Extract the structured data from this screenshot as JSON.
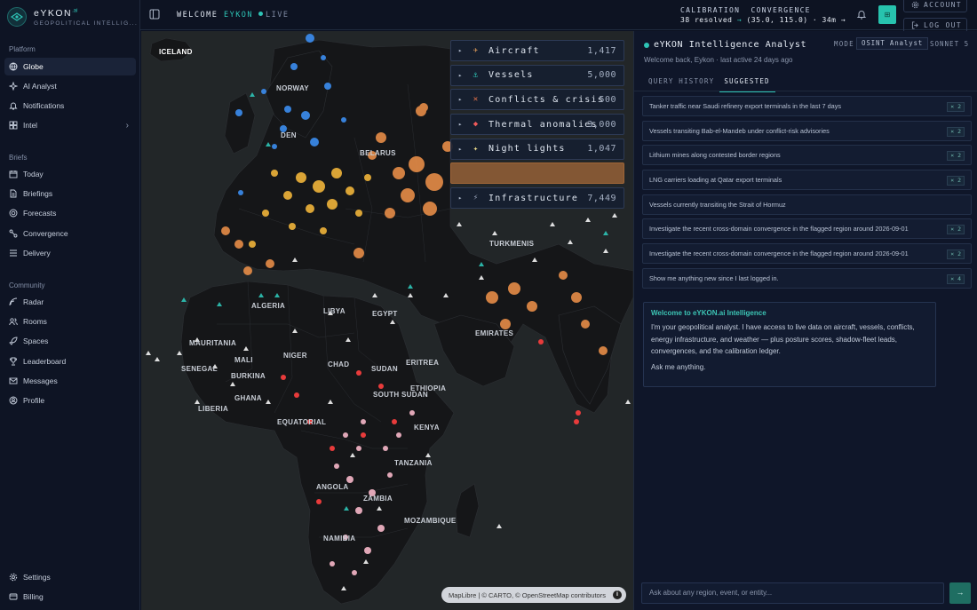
{
  "brand": {
    "name": "eYKON",
    "suffix": ".ai",
    "subtitle": "GEOPOLITICAL INTELLIG..."
  },
  "sidebar": {
    "platform_label": "Platform",
    "platform": [
      {
        "label": "Globe",
        "icon": "globe-icon",
        "active": true
      },
      {
        "label": "AI Analyst",
        "icon": "sparkle-icon"
      },
      {
        "label": "Notifications",
        "icon": "bell-icon"
      },
      {
        "label": "Intel",
        "icon": "grid-icon",
        "chevron": true
      }
    ],
    "briefs_label": "Briefs",
    "briefs": [
      {
        "label": "Today",
        "icon": "calendar-icon"
      },
      {
        "label": "Briefings",
        "icon": "document-icon"
      },
      {
        "label": "Forecasts",
        "icon": "target-icon"
      },
      {
        "label": "Convergence",
        "icon": "convergence-icon"
      },
      {
        "label": "Delivery",
        "icon": "list-icon"
      }
    ],
    "community_label": "Community",
    "community": [
      {
        "label": "Radar",
        "icon": "radar-icon"
      },
      {
        "label": "Rooms",
        "icon": "users-icon"
      },
      {
        "label": "Spaces",
        "icon": "rocket-icon"
      },
      {
        "label": "Leaderboard",
        "icon": "trophy-icon"
      },
      {
        "label": "Messages",
        "icon": "mail-icon"
      },
      {
        "label": "Profile",
        "icon": "user-icon"
      }
    ],
    "bottom": [
      {
        "label": "Settings",
        "icon": "gear-icon"
      },
      {
        "label": "Billing",
        "icon": "card-icon"
      }
    ]
  },
  "topbar": {
    "welcome": "WELCOME",
    "user": "EYKON",
    "live": "LIVE",
    "calibration_label": "CALIBRATION",
    "calibration_value": "38 resolved",
    "convergence_label": "CONVERGENCE",
    "convergence_value": "(35.0, 115.0) · 34m",
    "arrow": "→",
    "teal_button": "⊞",
    "account": "ACCOUNT",
    "logout": "LOG OUT"
  },
  "map": {
    "layers": [
      {
        "name": "Aircraft",
        "count": "1,417",
        "icon": "✈",
        "color": "#e9a15b"
      },
      {
        "name": "Vessels",
        "count": "5,000",
        "icon": "⚓",
        "color": "#2ec4b6"
      },
      {
        "name": "Conflicts & crisis",
        "count": "500",
        "icon": "✕",
        "color": "#e8734a"
      },
      {
        "name": "Thermal anomalies",
        "count": "3,000",
        "icon": "◆",
        "color": "#ef5a5a"
      },
      {
        "name": "Night lights",
        "count": "1,047",
        "icon": "✦",
        "color": "#e9d98a"
      },
      {
        "name": "",
        "count": "",
        "icon": "",
        "color": "#e0893a"
      },
      {
        "name": "Infrastructure",
        "count": "7,449",
        "icon": "⚡",
        "color": "#9aa5bb"
      }
    ],
    "countries": [
      "ICELAND",
      "NORWAY",
      "BELARUS",
      "TURKMENIS",
      "ALGERIA",
      "LIBYA",
      "EGYPT",
      "MAURITANIA",
      "MALI",
      "NIGER",
      "CHAD",
      "SUDAN",
      "ERITREA",
      "ETHIOPIA",
      "SOUTH SUDAN",
      "SENEGAL",
      "BURKINA",
      "GHANA",
      "LIBERIA",
      "EQUATORIAL",
      "KENYA",
      "TANZANIA",
      "ANGOLA",
      "ZAMBIA",
      "NAMIBIA",
      "MOZAMBIQUE",
      "EMIRATES",
      "DEN"
    ],
    "attribution": "MapLibre | © CARTO, © OpenStreetMap contributors",
    "info": "i"
  },
  "panel": {
    "title": "eYKON Intelligence Analyst",
    "subtitle": "Welcome back, Eykon · last active 24 days ago",
    "mode_label": "MODE",
    "mode_value": "OSINT Analyst",
    "model": "SONNET 5",
    "tabs": [
      "QUERY HISTORY",
      "SUGGESTED"
    ],
    "suggestions": [
      {
        "text": "Tanker traffic near Saudi refinery export terminals in the last 7 days",
        "badge": "× 2"
      },
      {
        "text": "Vessels transiting Bab-el-Mandeb under conflict-risk advisories",
        "badge": "× 2"
      },
      {
        "text": "Lithium mines along contested border regions",
        "badge": "× 2"
      },
      {
        "text": "LNG carriers loading at Qatar export terminals",
        "badge": "× 2"
      },
      {
        "text": "Vessels currently transiting the Strait of Hormuz",
        "badge": ""
      },
      {
        "text": "Investigate the recent cross-domain convergence in the flagged region around 2026-09-01",
        "badge": "× 2"
      },
      {
        "text": "Investigate the recent cross-domain convergence in the flagged region around 2026-09-01",
        "badge": "× 2"
      },
      {
        "text": "Show me anything new since I last logged in.",
        "badge": "× 4"
      }
    ],
    "welcome_card": {
      "title": "Welcome to eYKON.ai Intelligence",
      "body": "I'm your geopolitical analyst. I have access to live data on aircraft, vessels, conflicts, energy infrastructure, and weather — plus posture scores, shadow-fleet leads, convergences, and the calibration ledger.",
      "ask": "Ask me anything."
    },
    "input_placeholder": "Ask about any region, event, or entity...",
    "send": "→"
  }
}
